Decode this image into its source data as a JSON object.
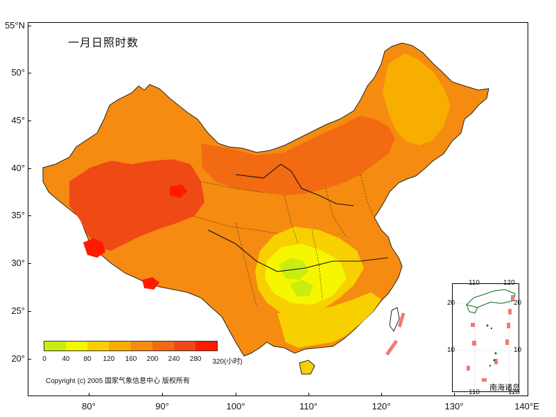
{
  "map": {
    "title": "一月日照时数",
    "y_axis_labels": [
      "55°N",
      "50°",
      "45°",
      "40°",
      "35°",
      "30°",
      "25°",
      "20°"
    ],
    "x_axis_labels": [
      "80°",
      "90°",
      "100°",
      "110°",
      "120°",
      "130°",
      "140°E"
    ],
    "legend": {
      "tick_labels": [
        "0",
        "40",
        "80",
        "120",
        "160",
        "200",
        "240",
        "280",
        "320(小时)"
      ],
      "colors": [
        "#c8ee10",
        "#f6f600",
        "#f8d000",
        "#f7ae00",
        "#f58b10",
        "#f26a12",
        "#ef4a16",
        "#ff1a00"
      ]
    },
    "copyright": "Copyright (c) 2005 国家气象信息中心 版权所有",
    "inset": {
      "name": "南海诸岛",
      "top_labels": [
        "110",
        "120"
      ],
      "side_labels_left": [
        "20",
        "10"
      ],
      "side_labels_right": [
        "20",
        "10"
      ],
      "bottom_labels": [
        "110",
        "120"
      ]
    }
  }
}
